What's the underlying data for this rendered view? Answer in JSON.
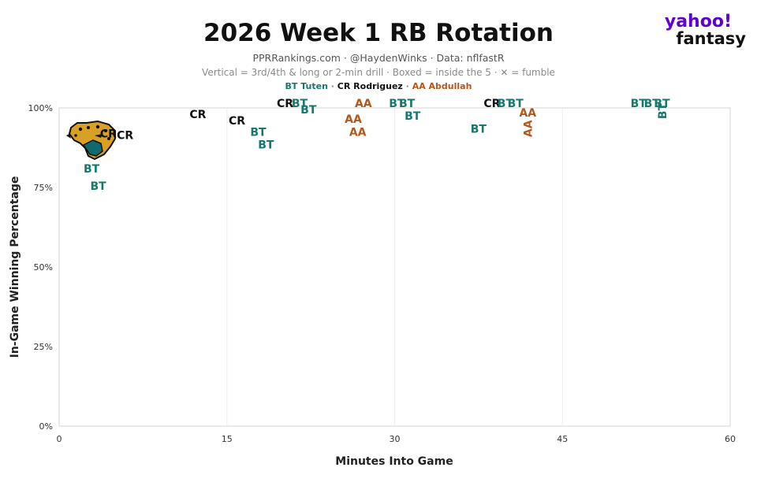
{
  "header": {
    "title": "2026 Week 1 RB Rotation",
    "subtitle": "PPRRankings.com · @HaydenWinks · Data: nflfastR",
    "note": "Vertical = 3rd/4th & long or 2-min drill · Boxed = inside the 5 · ✕ = fumble"
  },
  "legend": [
    {
      "label": "BT Tuten",
      "color": "#17786b"
    },
    {
      "label": " · ",
      "color": "#888888"
    },
    {
      "label": "CR Rodriguez",
      "color": "#111111"
    },
    {
      "label": " · ",
      "color": "#888888"
    },
    {
      "label": "AA Abdullah",
      "color": "#b5561b"
    }
  ],
  "logo": {
    "line1": "yahoo!",
    "line2": "fantasy"
  },
  "team_logo_icon": "jaguar-head-icon",
  "chart_data": {
    "type": "scatter",
    "xlabel": "Minutes Into Game",
    "ylabel": "In-Game Winning Percentage",
    "xlim": [
      0,
      60
    ],
    "ylim": [
      0,
      100
    ],
    "xticks": [
      0,
      15,
      30,
      45,
      60
    ],
    "xtick_labels": [
      "0",
      "15",
      "30",
      "45",
      "60"
    ],
    "yticks": [
      0,
      25,
      50,
      75,
      100
    ],
    "ytick_labels": [
      "0%",
      "25%",
      "50%",
      "75%",
      "100%"
    ],
    "grid": true,
    "players": {
      "BT": {
        "name": "Tuten",
        "color": "#17786b"
      },
      "CR": {
        "name": "Rodriguez",
        "color": "#111111"
      },
      "AA": {
        "name": "Abdullah",
        "color": "#b5561b"
      }
    },
    "points": [
      {
        "x": 4.4,
        "y": 92,
        "label": "CR"
      },
      {
        "x": 5.9,
        "y": 91.5,
        "label": "CR"
      },
      {
        "x": 2.9,
        "y": 81,
        "label": "BT"
      },
      {
        "x": 3.5,
        "y": 75.5,
        "label": "BT"
      },
      {
        "x": 12.4,
        "y": 98,
        "label": "CR"
      },
      {
        "x": 15.9,
        "y": 96,
        "label": "CR"
      },
      {
        "x": 17.8,
        "y": 92.5,
        "label": "BT"
      },
      {
        "x": 18.5,
        "y": 88.5,
        "label": "BT"
      },
      {
        "x": 20.2,
        "y": 101.5,
        "label": "CR"
      },
      {
        "x": 21.5,
        "y": 101.5,
        "label": "BT"
      },
      {
        "x": 22.3,
        "y": 99.5,
        "label": "BT"
      },
      {
        "x": 27.2,
        "y": 101.5,
        "label": "AA"
      },
      {
        "x": 26.3,
        "y": 96.5,
        "label": "AA"
      },
      {
        "x": 26.7,
        "y": 92.5,
        "label": "AA"
      },
      {
        "x": 30.2,
        "y": 101.5,
        "label": "BT"
      },
      {
        "x": 31.1,
        "y": 101.5,
        "label": "BT"
      },
      {
        "x": 31.6,
        "y": 97.5,
        "label": "BT"
      },
      {
        "x": 38.7,
        "y": 101.5,
        "label": "CR"
      },
      {
        "x": 39.9,
        "y": 101.5,
        "label": "BT"
      },
      {
        "x": 40.8,
        "y": 101.5,
        "label": "BT"
      },
      {
        "x": 37.5,
        "y": 93.5,
        "label": "BT"
      },
      {
        "x": 41.9,
        "y": 98.5,
        "label": "AA"
      },
      {
        "x": 42.0,
        "y": 93.5,
        "label": "AA",
        "vertical": true
      },
      {
        "x": 51.8,
        "y": 101.5,
        "label": "BT"
      },
      {
        "x": 53.0,
        "y": 101.5,
        "label": "BT"
      },
      {
        "x": 53.9,
        "y": 101.5,
        "label": "BT"
      },
      {
        "x": 54.0,
        "y": 99,
        "label": "BT",
        "vertical": true
      }
    ]
  }
}
